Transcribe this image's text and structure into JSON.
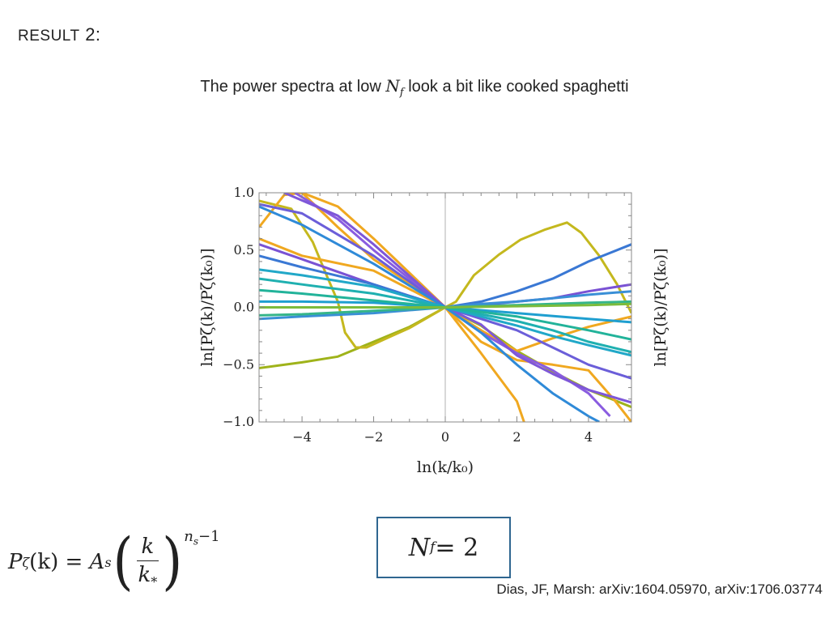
{
  "slide": {
    "heading_small": "RESULT",
    "heading_num": "2:",
    "subtitle_pre": "The power spectra at low ",
    "subtitle_var": "N",
    "subtitle_sub": "f",
    "subtitle_post": " look a bit like cooked spaghetti",
    "nf_label_var": "N",
    "nf_label_sub": "f",
    "nf_label_rest": " = 2",
    "formula": {
      "lhs": "P",
      "lhs_sub": "ζ",
      "lhs_arg": "(k) = ",
      "amp": "A",
      "amp_sub": "s",
      "num": "k",
      "den": "k",
      "den_sub": "*",
      "exponent": "n",
      "exponent_sub": "s",
      "exponent_rest": "−1"
    },
    "citation": "Dias, JF, Marsh: arXiv:1604.05970, arXiv:1706.03774"
  },
  "chart_data": {
    "type": "line",
    "xlabel": "ln(k/k₀)",
    "ylabel": "ln[Pζ(k)/Pζ(k₀)]",
    "xlim": [
      -5.2,
      5.2
    ],
    "ylim": [
      -1.0,
      1.0
    ],
    "xticks": [
      "−4",
      "−2",
      "0",
      "2",
      "4"
    ],
    "xtick_values": [
      -4,
      -2,
      0,
      2,
      4
    ],
    "yticks": [
      "−1.0",
      "−0.5",
      "0.0",
      "0.5",
      "1.0"
    ],
    "ytick_values": [
      -1.0,
      -0.5,
      0.0,
      0.5,
      1.0
    ],
    "series": [
      {
        "color": "#9fb31a",
        "points": [
          [
            -5.2,
            -0.53
          ],
          [
            -4,
            -0.48
          ],
          [
            -3,
            -0.43
          ],
          [
            -2,
            -0.3
          ],
          [
            -1,
            -0.17
          ],
          [
            0,
            0
          ],
          [
            1,
            -0.16
          ],
          [
            2,
            -0.38
          ],
          [
            3,
            -0.56
          ],
          [
            4,
            -0.72
          ],
          [
            5.2,
            -0.87
          ]
        ]
      },
      {
        "color": "#c4b81e",
        "points": [
          [
            -5.2,
            0.93
          ],
          [
            -4.3,
            0.86
          ],
          [
            -3.7,
            0.57
          ],
          [
            -3.3,
            0.27
          ],
          [
            -3,
            0.05
          ],
          [
            -2.8,
            -0.22
          ],
          [
            -2.5,
            -0.35
          ],
          [
            -2.2,
            -0.35
          ],
          [
            -1.5,
            -0.25
          ],
          [
            -1,
            -0.18
          ],
          [
            0,
            0
          ],
          [
            0.3,
            0.05
          ],
          [
            0.8,
            0.28
          ],
          [
            1.5,
            0.46
          ],
          [
            2.1,
            0.59
          ],
          [
            2.8,
            0.68
          ],
          [
            3.4,
            0.74
          ],
          [
            3.8,
            0.65
          ],
          [
            4.3,
            0.45
          ],
          [
            4.8,
            0.2
          ],
          [
            5.2,
            -0.05
          ]
        ]
      },
      {
        "color": "#f0a820",
        "points": [
          [
            -5.2,
            0.7
          ],
          [
            -4.5,
            0.98
          ],
          [
            -4,
            1.0
          ],
          [
            -3,
            0.88
          ],
          [
            -2,
            0.6
          ],
          [
            -1,
            0.3
          ],
          [
            0,
            0
          ],
          [
            1,
            -0.4
          ],
          [
            2,
            -0.82
          ],
          [
            2.2,
            -1.0
          ]
        ]
      },
      {
        "color": "#f0a820",
        "points": [
          [
            -5.2,
            0.6
          ],
          [
            -4,
            0.45
          ],
          [
            -2,
            0.32
          ],
          [
            0,
            0
          ],
          [
            1,
            -0.2
          ],
          [
            2,
            -0.38
          ],
          [
            3,
            -0.27
          ],
          [
            4,
            -0.17
          ],
          [
            5.2,
            -0.08
          ]
        ]
      },
      {
        "color": "#f0a820",
        "points": [
          [
            -4,
            1.0
          ],
          [
            -3,
            0.7
          ],
          [
            -2,
            0.42
          ],
          [
            0,
            0
          ],
          [
            1,
            -0.3
          ],
          [
            2,
            -0.46
          ],
          [
            3,
            -0.5
          ],
          [
            4,
            -0.55
          ],
          [
            4.7,
            -0.8
          ],
          [
            5.2,
            -1.0
          ]
        ]
      },
      {
        "color": "#8a5ce0",
        "points": [
          [
            -4.2,
            1.0
          ],
          [
            -3,
            0.77
          ],
          [
            -2,
            0.5
          ],
          [
            0,
            0
          ],
          [
            1,
            -0.22
          ],
          [
            2,
            -0.4
          ],
          [
            3,
            -0.55
          ],
          [
            4,
            -0.75
          ],
          [
            4.6,
            -0.95
          ]
        ]
      },
      {
        "color": "#7e57d8",
        "points": [
          [
            -4.5,
            1.0
          ],
          [
            -3,
            0.8
          ],
          [
            -2,
            0.55
          ],
          [
            0,
            0
          ],
          [
            1,
            -0.15
          ],
          [
            2,
            -0.42
          ],
          [
            3,
            -0.58
          ],
          [
            4,
            -0.72
          ],
          [
            5.2,
            -0.83
          ]
        ]
      },
      {
        "color": "#7a52d4",
        "points": [
          [
            -5.2,
            0.55
          ],
          [
            -4,
            0.42
          ],
          [
            -2,
            0.2
          ],
          [
            0,
            0
          ],
          [
            1,
            0.02
          ],
          [
            2,
            0.05
          ],
          [
            3,
            0.08
          ],
          [
            4,
            0.14
          ],
          [
            5.2,
            0.2
          ]
        ]
      },
      {
        "color": "#6b5ed9",
        "points": [
          [
            -5.2,
            0.9
          ],
          [
            -4,
            0.82
          ],
          [
            -2,
            0.45
          ],
          [
            0,
            0
          ],
          [
            1,
            -0.1
          ],
          [
            2,
            -0.2
          ],
          [
            3,
            -0.35
          ],
          [
            4,
            -0.5
          ],
          [
            5.2,
            -0.62
          ]
        ]
      },
      {
        "color": "#3a78d4",
        "points": [
          [
            -5.2,
            0.45
          ],
          [
            -4,
            0.35
          ],
          [
            -2,
            0.2
          ],
          [
            0,
            0
          ],
          [
            1,
            0.05
          ],
          [
            2,
            0.14
          ],
          [
            3,
            0.25
          ],
          [
            4,
            0.4
          ],
          [
            5.2,
            0.55
          ]
        ]
      },
      {
        "color": "#2f8ad8",
        "points": [
          [
            -5.2,
            0.88
          ],
          [
            -4,
            0.72
          ],
          [
            -2,
            0.38
          ],
          [
            0,
            0
          ],
          [
            1,
            -0.22
          ],
          [
            2,
            -0.5
          ],
          [
            3,
            -0.75
          ],
          [
            4,
            -0.95
          ],
          [
            4.3,
            -1.0
          ]
        ]
      },
      {
        "color": "#3a8fd6",
        "points": [
          [
            -5.2,
            -0.1
          ],
          [
            -4,
            -0.08
          ],
          [
            -2,
            -0.05
          ],
          [
            0,
            0
          ],
          [
            1,
            0.03
          ],
          [
            2,
            0.05
          ],
          [
            3,
            0.08
          ],
          [
            4,
            0.11
          ],
          [
            5.2,
            0.14
          ]
        ]
      },
      {
        "color": "#1f9fd0",
        "points": [
          [
            -5.2,
            0.05
          ],
          [
            -4,
            0.05
          ],
          [
            -2,
            0.04
          ],
          [
            0,
            0
          ],
          [
            2,
            -0.05
          ],
          [
            4,
            -0.1
          ],
          [
            5.2,
            -0.13
          ]
        ]
      },
      {
        "color": "#21a8c8",
        "points": [
          [
            -5.2,
            0.33
          ],
          [
            -4,
            0.28
          ],
          [
            -2,
            0.18
          ],
          [
            0,
            0
          ],
          [
            1,
            -0.08
          ],
          [
            2,
            -0.16
          ],
          [
            3,
            -0.25
          ],
          [
            4,
            -0.33
          ],
          [
            5.2,
            -0.42
          ]
        ]
      },
      {
        "color": "#1fb0b0",
        "points": [
          [
            -5.2,
            0.25
          ],
          [
            -4,
            0.2
          ],
          [
            -2,
            0.12
          ],
          [
            0,
            0
          ],
          [
            1,
            -0.06
          ],
          [
            2,
            -0.12
          ],
          [
            3,
            -0.2
          ],
          [
            4,
            -0.3
          ],
          [
            5.2,
            -0.39
          ]
        ]
      },
      {
        "color": "#22b39a",
        "points": [
          [
            -5.2,
            0.15
          ],
          [
            -4,
            0.12
          ],
          [
            -2,
            0.06
          ],
          [
            0,
            0
          ],
          [
            2,
            -0.08
          ],
          [
            4,
            -0.2
          ],
          [
            5.2,
            -0.28
          ]
        ]
      },
      {
        "color": "#35b58a",
        "points": [
          [
            -5.2,
            -0.07
          ],
          [
            -4,
            -0.06
          ],
          [
            -2,
            -0.03
          ],
          [
            0,
            0
          ],
          [
            2,
            0.02
          ],
          [
            4,
            0.04
          ],
          [
            5.2,
            0.05
          ]
        ]
      },
      {
        "color": "#7bbb3c",
        "points": [
          [
            -5.2,
            0.0
          ],
          [
            -4,
            0.0
          ],
          [
            -2,
            0.0
          ],
          [
            0,
            0
          ],
          [
            2,
            0.01
          ],
          [
            4,
            0.02
          ],
          [
            5.2,
            0.03
          ]
        ]
      }
    ]
  }
}
